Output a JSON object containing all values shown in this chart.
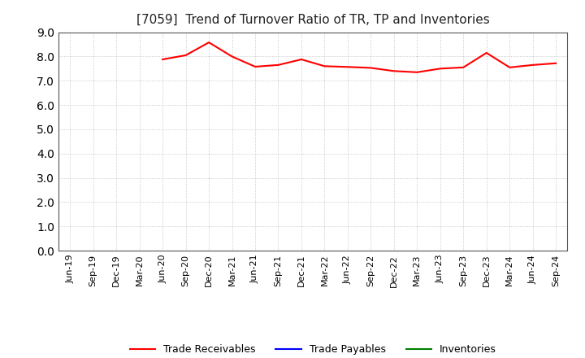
{
  "title": "[7059]  Trend of Turnover Ratio of TR, TP and Inventories",
  "x_labels": [
    "Jun-19",
    "Sep-19",
    "Dec-19",
    "Mar-20",
    "Jun-20",
    "Sep-20",
    "Dec-20",
    "Mar-21",
    "Jun-21",
    "Sep-21",
    "Dec-21",
    "Mar-22",
    "Jun-22",
    "Sep-22",
    "Dec-22",
    "Mar-23",
    "Jun-23",
    "Sep-23",
    "Dec-23",
    "Mar-24",
    "Jun-24",
    "Sep-24"
  ],
  "trade_receivables": [
    null,
    null,
    null,
    null,
    7.88,
    8.05,
    8.58,
    8.0,
    7.58,
    7.65,
    7.88,
    7.6,
    7.57,
    7.53,
    7.4,
    7.35,
    7.5,
    7.55,
    8.15,
    7.55,
    7.65,
    7.72
  ],
  "trade_payables": [],
  "inventories": [],
  "ylim": [
    0.0,
    9.0
  ],
  "yticks": [
    0.0,
    1.0,
    2.0,
    3.0,
    4.0,
    5.0,
    6.0,
    7.0,
    8.0,
    9.0
  ],
  "line_color_tr": "#FF0000",
  "line_color_tp": "#0000FF",
  "line_color_inv": "#008000",
  "legend_labels": [
    "Trade Receivables",
    "Trade Payables",
    "Inventories"
  ],
  "background_color": "#FFFFFF",
  "grid_color": "#BBBBBB",
  "title_fontsize": 11,
  "tick_fontsize": 8,
  "ytick_fontsize": 10
}
